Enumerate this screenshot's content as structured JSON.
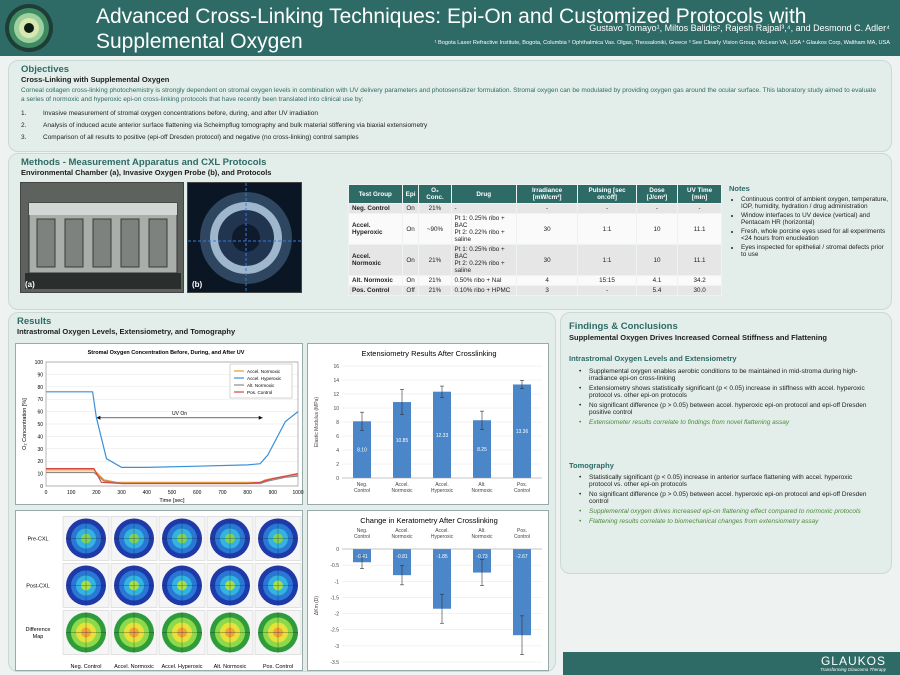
{
  "header": {
    "title_line1": "Advanced Cross-Linking Techniques: Epi-On and Customized Protocols with",
    "title_line2": "Supplemental Oxygen",
    "authors": "Gustavo Tomayo¹, Miltos Balidis², Rajesh Rajpal³,⁴, and Desmond C. Adler⁴",
    "affiliations": "¹ Bogota Laser Refractive Institute, Bogota, Columbia   ² Ophthalmica Vas. Olgas, Thessaloniki, Greece   ³ See Clearly Vision Group, McLean VA, USA   ⁴ Glaukos Corp, Waltham MA, USA"
  },
  "objectives": {
    "title": "Objectives",
    "subtitle": "Cross-Linking with Supplemental Oxygen",
    "text": "Corneal collagen cross-linking photochemistry is strongly dependent on stromal oxygen levels in combination with UV delivery parameters and photosensitizer formulation. Stromal oxygen can be modulated by providing oxygen gas around the ocular surface. This laboratory study aimed to evaluate a series of normoxic and hyperoxic epi-on cross-linking protocols that have recently been translated into clinical use by:",
    "items": [
      {
        "num": "1.",
        "text": "Invasive measurement of stromal oxygen concentrations before, during, and after UV irradiation"
      },
      {
        "num": "2.",
        "text": "Analysis of induced acute anterior surface flattening via Scheimpflug tomography and bulk material stiffening via biaxial extensiometry"
      },
      {
        "num": "3.",
        "text": "Comparison of all results to positive (epi-off Dresden protocol) and negative (no cross-linking) control samples"
      }
    ]
  },
  "methods": {
    "title": "Methods - Measurement Apparatus and CXL Protocols",
    "subtitle": "Environmental Chamber (a), Invasive Oxygen Probe (b), and Protocols",
    "photo_a_label": "(a)",
    "photo_b_label": "(b)",
    "table": {
      "headers": [
        "Test Group",
        "Epi",
        "O₂ Conc.",
        "Drug",
        "Irradiance [mW/cm²]",
        "Pulsing [sec on:off]",
        "Dose [J/cm²]",
        "UV Time [min]"
      ],
      "rows": [
        {
          "group": "Neg. Control",
          "epi": "On",
          "o2": "21%",
          "drug": "-",
          "irr": "-",
          "puls": "-",
          "dose": "-",
          "time": "-"
        },
        {
          "group": "Accel. Hyperoxic",
          "epi": "On",
          "o2": "~90%",
          "drug": "Pt 1: 0.25% ribo + BAC\nPt 2: 0.22% ribo + saline",
          "irr": "30",
          "puls": "1:1",
          "dose": "10",
          "time": "11.1"
        },
        {
          "group": "Accel. Normoxic",
          "epi": "On",
          "o2": "21%",
          "drug": "Pt 1: 0.25% ribo + BAC\nPt 2: 0.22% ribo + saline",
          "irr": "30",
          "puls": "1:1",
          "dose": "10",
          "time": "11.1"
        },
        {
          "group": "Alt. Normoxic",
          "epi": "On",
          "o2": "21%",
          "drug": "0.50% ribo + NaI",
          "irr": "4",
          "puls": "15:15",
          "dose": "4.1",
          "time": "34.2"
        },
        {
          "group": "Pos. Control",
          "epi": "Off",
          "o2": "21%",
          "drug": "0.10% ribo + HPMC",
          "irr": "3",
          "puls": "-",
          "dose": "5.4",
          "time": "30.0"
        }
      ]
    },
    "notes_title": "Notes",
    "notes": [
      "Continuous control of ambient oxygen, temperature, IOP, humidity, hydration / drug administration",
      "Window interfaces to UV device (vertical) and Pentacam HR (horizontal)",
      "Fresh, whole porcine eyes used for all experiments <24 hours from enucleation",
      "Eyes inspected for epithelial / stromal defects prior to use"
    ]
  },
  "results": {
    "title": "Results",
    "subtitle": "Intrastromal Oxygen Levels, Extensiometry, and Tomography",
    "uv_on_label": "UV On",
    "map_row_labels": [
      "Pre-CXL",
      "Post-CXL",
      "Difference Map"
    ],
    "map_col_labels": [
      "Neg. Control",
      "Accel. Normoxic",
      "Accel. Hyperoxic",
      "Alt. Normoxic",
      "Pos. Control"
    ]
  },
  "chart_data": [
    {
      "type": "line",
      "title": "Stromal Oxygen Concentration Before, During, and After UV",
      "xlabel": "Time [sec]",
      "ylabel": "O₂ Concentration [%]",
      "xlim": [
        0,
        1000
      ],
      "ylim": [
        0,
        100
      ],
      "xticks": [
        0,
        100,
        200,
        300,
        400,
        500,
        600,
        700,
        800,
        900,
        1000
      ],
      "yticks": [
        0,
        10,
        20,
        30,
        40,
        50,
        60,
        70,
        80,
        90,
        100
      ],
      "series": [
        {
          "name": "Accel. Normoxic",
          "color": "#e89a2c",
          "x": [
            0,
            190,
            230,
            280,
            400,
            600,
            850,
            870,
            950,
            1000
          ],
          "y": [
            13,
            13,
            5,
            3,
            3,
            3,
            3,
            5,
            8,
            9
          ]
        },
        {
          "name": "Accel. Hyperoxic",
          "color": "#3a8fd8",
          "x": [
            0,
            185,
            200,
            240,
            300,
            400,
            600,
            800,
            850,
            880,
            950,
            1000
          ],
          "y": [
            76,
            76,
            55,
            22,
            15,
            15,
            16,
            17,
            18,
            25,
            52,
            60
          ]
        },
        {
          "name": "Alt. Normoxic",
          "color": "#8a8a8a",
          "x": [
            0,
            190,
            230,
            300,
            500,
            700,
            850,
            880,
            950,
            1000
          ],
          "y": [
            11,
            11,
            4,
            2,
            2,
            2,
            2,
            4,
            7,
            8
          ]
        },
        {
          "name": "Pos. Control",
          "color": "#d94545",
          "x": [
            0,
            190,
            220,
            300,
            500,
            800,
            850,
            900,
            1000
          ],
          "y": [
            14,
            14,
            3,
            2,
            2,
            2,
            3,
            6,
            10
          ]
        }
      ]
    },
    {
      "type": "bar",
      "title": "Extensiometry Results After Crosslinking",
      "ylabel": "Elastic Modulus (MPa)",
      "categories": [
        "Neg. Control",
        "Accel. Normoxic",
        "Accel. Hyperoxic",
        "Alt. Normoxic",
        "Pos. Control"
      ],
      "values": [
        8.1,
        10.85,
        12.33,
        8.25,
        13.36
      ],
      "value_labels": [
        "8.10",
        "10.85",
        "12.33",
        "8.25",
        "13.36"
      ],
      "errors": [
        1.3,
        1.8,
        0.8,
        1.3,
        0.6
      ],
      "ylim": [
        0,
        16
      ],
      "yticks": [
        "0",
        "2",
        "4",
        "6",
        "8",
        "10",
        "12",
        "14",
        "16"
      ],
      "color": "#4a86c8"
    },
    {
      "type": "bar",
      "title": "Change in Keratometry After Crosslinking",
      "ylabel": "ΔKm (D)",
      "categories": [
        "Neg. Control",
        "Accel. Normoxic",
        "Accel. Hyperoxic",
        "Alt. Normoxic",
        "Pos. Control"
      ],
      "values": [
        -0.41,
        -0.81,
        -1.85,
        -0.73,
        -2.67
      ],
      "value_labels": [
        "-0.41",
        "-0.81",
        "-1.85",
        "-0.73",
        "-2.67"
      ],
      "errors": [
        0.2,
        0.3,
        0.45,
        0.4,
        0.6
      ],
      "ylim": [
        -3.5,
        0
      ],
      "yticks": [
        "0",
        "-0.5",
        "-1",
        "-1.5",
        "-2",
        "-2.5",
        "-3",
        "-3.5"
      ],
      "color": "#4a86c8"
    }
  ],
  "findings": {
    "title": "Findings & Conclusions",
    "subtitle": "Supplemental Oxygen Drives Increased Corneal Stiffness and Flattening",
    "section1_title": "Intrastromal Oxygen Levels and Extensiometry",
    "section1": [
      {
        "text": "Supplemental oxygen enables aerobic conditions to be maintained in mid-stroma during high-irradiance epi-on cross-linking",
        "italic": false
      },
      {
        "text": "Extensiometry shows statistically significant (p < 0.05) increase in stiffness with accel. hyperoxic protocol vs. other epi-on protocols",
        "italic": false
      },
      {
        "text": "No significant difference (p > 0.05) between accel. hyperoxic epi-on protocol and epi-off Dresden positive control",
        "italic": false
      },
      {
        "text": "Extensiometer results correlate to findings from novel flattening assay",
        "italic": true
      }
    ],
    "section2_title": "Tomography",
    "section2": [
      {
        "text": "Statistically significant (p < 0.05) increase in anterior surface flattening with accel. hyperoxic protocol vs. other epi-on protocols",
        "italic": false
      },
      {
        "text": "No significant difference (p > 0.05) between accel. hyperoxic epi-on protocol and epi-off Dresden control",
        "italic": false
      },
      {
        "text": "Supplemental oxygen drives increased epi-on flattening effect compared to normoxic protocols",
        "italic": true
      },
      {
        "text": "Flattening results correlate to biomechanical changes from extensiometry assay",
        "italic": true
      }
    ]
  },
  "footer": {
    "brand": "GLAUKOS",
    "tagline": "Transforming Glaucoma Therapy"
  }
}
